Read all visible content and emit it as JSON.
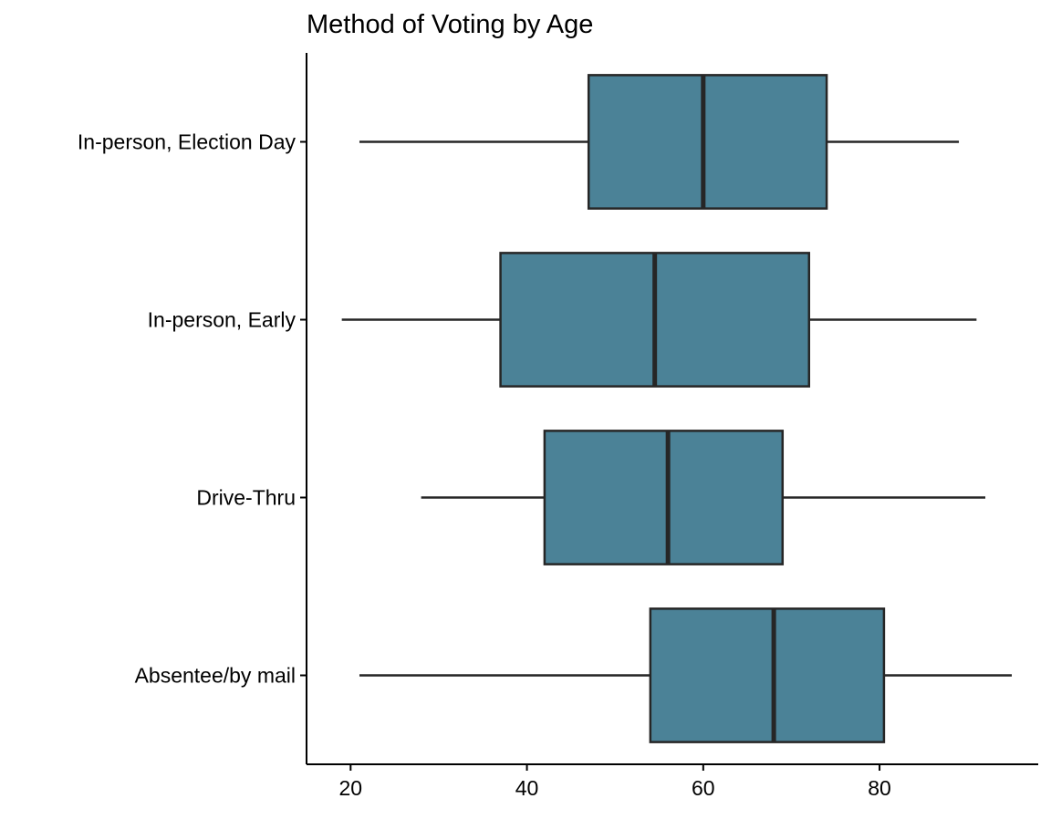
{
  "chart_data": {
    "type": "boxplot",
    "title": "Method of Voting by Age",
    "xlabel": "",
    "ylabel": "",
    "xlim": [
      15,
      98
    ],
    "xticks": [
      20,
      40,
      60,
      80
    ],
    "categories": [
      "In-person, Election Day",
      "In-person, Early",
      "Drive-Thru",
      "Absentee/by mail"
    ],
    "boxes": [
      {
        "category": "In-person, Election Day",
        "min": 21,
        "q1": 47,
        "median": 60,
        "q3": 74,
        "max": 89
      },
      {
        "category": "In-person, Early",
        "min": 19,
        "q1": 37,
        "median": 54.5,
        "q3": 72,
        "max": 91
      },
      {
        "category": "Drive-Thru",
        "min": 28,
        "q1": 42,
        "median": 56,
        "q3": 69,
        "max": 92
      },
      {
        "category": "Absentee/by mail",
        "min": 21,
        "q1": 54,
        "median": 68,
        "q3": 80.5,
        "max": 95
      }
    ],
    "box_fill": "#4b8297",
    "line_color": "#262626",
    "grid": false,
    "legend": "none"
  }
}
